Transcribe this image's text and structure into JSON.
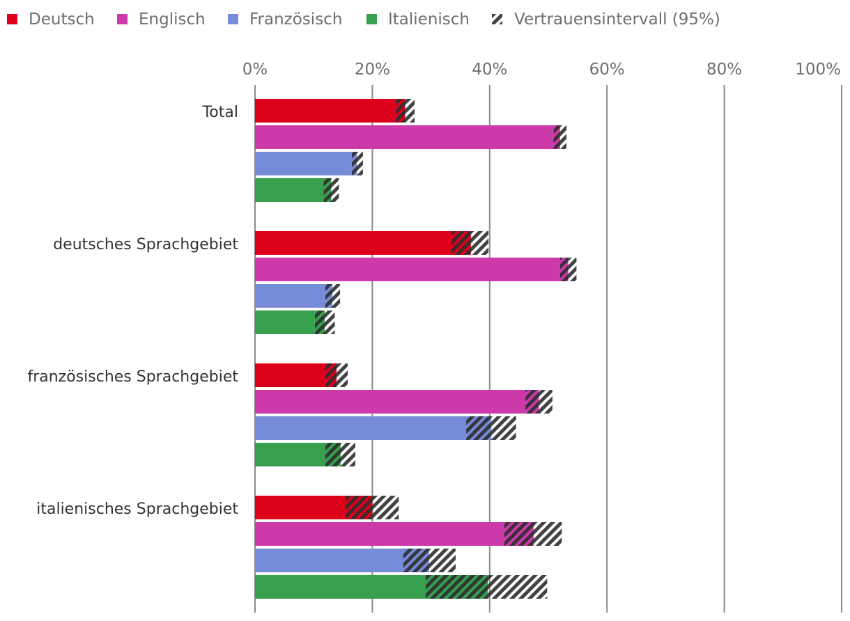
{
  "chart_data": {
    "type": "bar",
    "orientation": "horizontal",
    "unit": "%",
    "xlim": [
      0,
      100
    ],
    "ticks": [
      "0%",
      "20%",
      "40%",
      "60%",
      "80%",
      "100%"
    ],
    "tick_values": [
      0,
      20,
      40,
      60,
      80,
      100
    ],
    "legend_position": "top-left",
    "grid": true,
    "categories": [
      "Total",
      "deutsches Sprachgebiet",
      "französisches Sprachgebiet",
      "italienisches Sprachgebiet"
    ],
    "series": [
      {
        "name": "Deutsch",
        "color": "#dc001a",
        "values": [
          25.6,
          36.8,
          13.9,
          20.0
        ],
        "ci_low": [
          24.0,
          33.5,
          12.0,
          15.5
        ],
        "ci_high": [
          27.2,
          39.8,
          15.8,
          24.5
        ]
      },
      {
        "name": "Englisch",
        "color": "#cc3aaa",
        "values": [
          52.0,
          53.4,
          48.4,
          47.5
        ],
        "ci_low": [
          50.9,
          52.0,
          46.1,
          42.5
        ],
        "ci_high": [
          53.1,
          54.8,
          50.7,
          52.3
        ]
      },
      {
        "name": "Französisch",
        "color": "#768cd8",
        "values": [
          17.4,
          13.2,
          40.3,
          29.7
        ],
        "ci_low": [
          16.5,
          12.0,
          36.0,
          25.3
        ],
        "ci_high": [
          18.4,
          14.5,
          44.5,
          34.2
        ]
      },
      {
        "name": "Italienisch",
        "color": "#36a04f",
        "values": [
          13.0,
          11.9,
          14.6,
          39.7
        ],
        "ci_low": [
          11.7,
          10.2,
          12.0,
          29.1
        ],
        "ci_high": [
          14.3,
          13.6,
          17.1,
          49.8
        ]
      }
    ],
    "ci_legend": "Vertrauensintervall (95%)"
  }
}
